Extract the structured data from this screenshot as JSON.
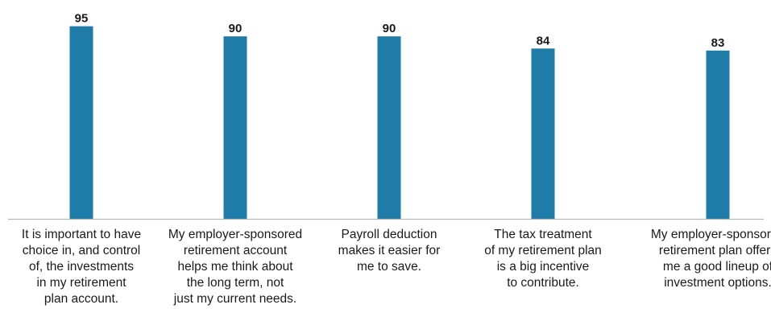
{
  "colors": {
    "bar": "#1f7ba7",
    "axis": "#b8b8b8",
    "text": "#1a1a1a"
  },
  "chart_data": {
    "type": "bar",
    "title": "",
    "xlabel": "",
    "ylabel": "",
    "ylim": [
      0,
      100
    ],
    "grid": false,
    "categories": [
      "It is important to have\nchoice in, and control\nof, the investments\nin my retirement\nplan account.",
      "My employer-sponsored\nretirement account\nhelps me think about\nthe long term, not\njust my current needs.",
      "Payroll deduction\nmakes it easier for\nme to save.",
      "The tax treatment\nof my retirement plan\nis a big incentive\nto contribute.",
      "My employer-sponsored\nretirement plan offers\nme a good lineup of\ninvestment options."
    ],
    "values": [
      95,
      90,
      90,
      84,
      83
    ],
    "value_labels": [
      "95",
      "90",
      "90",
      "84",
      "83"
    ]
  }
}
